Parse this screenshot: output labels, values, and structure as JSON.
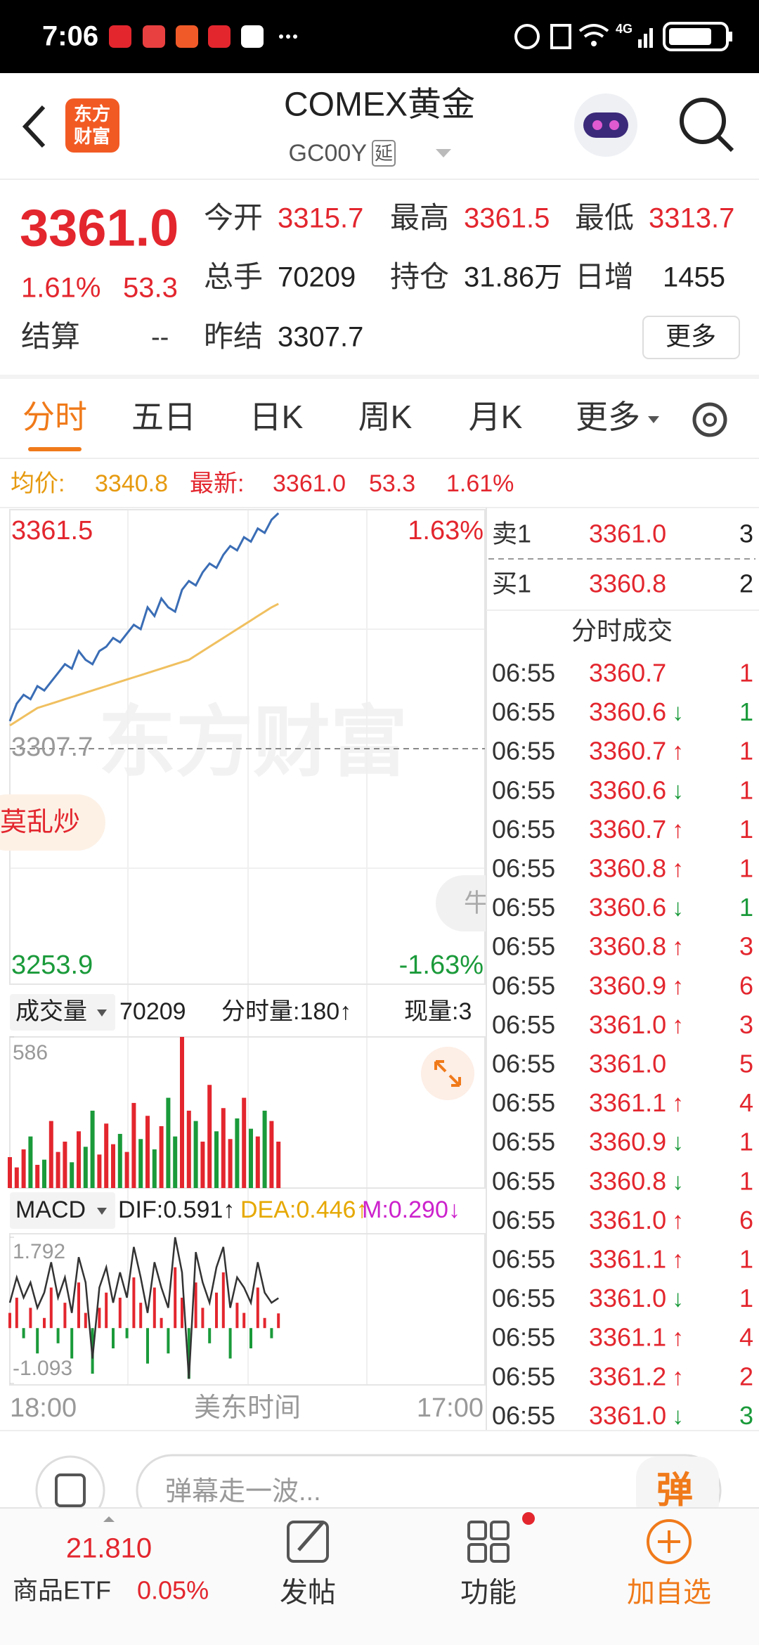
{
  "status_bar": {
    "time": "7:06",
    "network": "4G"
  },
  "header": {
    "logo": [
      "东方",
      "财富"
    ],
    "title": "COMEX黄金",
    "code": "GC00Y",
    "tag": "延"
  },
  "quote": {
    "price": "3361.0",
    "pct": "1.61%",
    "change": "53.3",
    "grid": [
      [
        {
          "label": "今开",
          "value": "3315.7"
        },
        {
          "label": "最高",
          "value": "3361.5"
        },
        {
          "label": "最低",
          "value": "3313.7"
        }
      ],
      [
        {
          "label": "总手",
          "value": "70209"
        },
        {
          "label": "持仓",
          "value": "31.86万"
        },
        {
          "label": "日增",
          "value": "1455"
        }
      ]
    ],
    "settle": {
      "label": "结算",
      "value": "--"
    },
    "prev_settle": {
      "label": "昨结",
      "value": "3307.7"
    },
    "more": "更多"
  },
  "tabs": {
    "items": [
      "分时",
      "五日",
      "日K",
      "周K",
      "月K",
      "更多"
    ],
    "active": 0
  },
  "info": {
    "avg_label": "均价:",
    "avg": "3340.8",
    "last_label": "最新:",
    "last": "3361.0",
    "change": "53.3",
    "pct": "1.61%"
  },
  "minute_chart": {
    "ylim": [
      3253.9,
      3361.5
    ],
    "yticks": [
      3361.5,
      3307.7,
      3253.9
    ],
    "y2lim": [
      -1.63,
      1.63
    ],
    "y2ticks": [
      {
        "value": 1.63,
        "label": "1.63%"
      },
      {
        "value": -1.63,
        "label": "-1.63%"
      }
    ],
    "price_color": "#3a6db5",
    "avg_color": "#f0c060",
    "price": [
      3314,
      3318,
      3320,
      3319,
      3322,
      3321,
      3323,
      3325,
      3327,
      3326,
      3330,
      3328,
      3327,
      3330,
      3331,
      3333,
      3332,
      3334,
      3336,
      3335,
      3340,
      3338,
      3342,
      3340,
      3339,
      3344,
      3346,
      3345,
      3348,
      3350,
      3349,
      3352,
      3354,
      3353,
      3356,
      3355,
      3358,
      3357,
      3360,
      3361.5
    ],
    "avg": [
      3313,
      3314,
      3315,
      3316,
      3317,
      3317.5,
      3318,
      3318.5,
      3319,
      3319.5,
      3320,
      3320.5,
      3321,
      3321.5,
      3322,
      3322.5,
      3323,
      3323.5,
      3324,
      3324.5,
      3325,
      3325.5,
      3326,
      3326.5,
      3327,
      3327.5,
      3328,
      3329,
      3330,
      3331,
      3332,
      3333,
      3334,
      3335,
      3336,
      3337,
      3338,
      3339,
      3340,
      3340.8
    ]
  },
  "volume": {
    "label": "成交量",
    "total": "70209",
    "minute_vol": "分时量:180↑",
    "current": "现量:3",
    "ylim": [
      0,
      586
    ],
    "yticks": [
      586
    ],
    "values": [
      120,
      80,
      150,
      200,
      90,
      110,
      260,
      140,
      180,
      100,
      220,
      160,
      300,
      130,
      250,
      170,
      210,
      140,
      330,
      190,
      280,
      150,
      240,
      350,
      200,
      586,
      300,
      260,
      180,
      400,
      220,
      310,
      190,
      270,
      350,
      230,
      200,
      300,
      260,
      180
    ]
  },
  "macd": {
    "label": "MACD",
    "dif": "DIF:0.591↑",
    "dea": "DEA:0.446↑",
    "m": "M:0.290↓",
    "ylim": [
      -1.093,
      1.792
    ],
    "yticks": [
      1.792,
      -1.093
    ],
    "hist": [
      0.3,
      0.6,
      -0.2,
      0.4,
      -0.5,
      0.2,
      0.8,
      -0.3,
      0.5,
      -0.6,
      0.9,
      0.3,
      -0.9,
      0.4,
      0.7,
      -0.4,
      0.6,
      -0.2,
      1.0,
      0.5,
      -0.7,
      0.8,
      0.2,
      -0.5,
      1.2,
      0.6,
      -1.0,
      0.9,
      0.4,
      -0.3,
      0.7,
      1.1,
      -0.6,
      0.5,
      0.3,
      -0.4,
      0.8,
      0.2,
      -0.2,
      0.29
    ],
    "dif_values": [
      0.5,
      1.0,
      0.6,
      0.9,
      0.4,
      0.7,
      1.3,
      0.6,
      1.0,
      0.3,
      1.4,
      0.9,
      -0.6,
      0.8,
      1.2,
      0.5,
      1.1,
      0.6,
      1.6,
      1.0,
      0.3,
      1.3,
      0.8,
      0.4,
      1.792,
      1.1,
      -1.0,
      1.5,
      0.9,
      0.5,
      1.2,
      1.6,
      0.4,
      1.0,
      0.8,
      0.5,
      1.3,
      0.7,
      0.5,
      0.591
    ]
  },
  "time_axis": [
    "18:00",
    "美东时间",
    "17:00"
  ],
  "order_book": {
    "asks": [
      {
        "label": "卖1",
        "price": "3361.0",
        "vol": "3"
      }
    ],
    "bids": [
      {
        "label": "买1",
        "price": "3360.8",
        "vol": "2"
      }
    ]
  },
  "trades": {
    "title": "分时成交",
    "rows": [
      {
        "time": "06:55",
        "price": "3360.7",
        "dir": null,
        "vol": "1",
        "color": "#e3262e"
      },
      {
        "time": "06:55",
        "price": "3360.6",
        "dir": "↓",
        "vol": "1",
        "color": "#1a9a3a"
      },
      {
        "time": "06:55",
        "price": "3360.7",
        "dir": "↑",
        "vol": "1",
        "color": "#e3262e"
      },
      {
        "time": "06:55",
        "price": "3360.6",
        "dir": "↓",
        "vol": "1",
        "color": "#e3262e"
      },
      {
        "time": "06:55",
        "price": "3360.7",
        "dir": "↑",
        "vol": "1",
        "color": "#e3262e"
      },
      {
        "time": "06:55",
        "price": "3360.8",
        "dir": "↑",
        "vol": "1",
        "color": "#e3262e"
      },
      {
        "time": "06:55",
        "price": "3360.6",
        "dir": "↓",
        "vol": "1",
        "color": "#1a9a3a"
      },
      {
        "time": "06:55",
        "price": "3360.8",
        "dir": "↑",
        "vol": "3",
        "color": "#e3262e"
      },
      {
        "time": "06:55",
        "price": "3360.9",
        "dir": "↑",
        "vol": "6",
        "color": "#e3262e"
      },
      {
        "time": "06:55",
        "price": "3361.0",
        "dir": "↑",
        "vol": "3",
        "color": "#e3262e"
      },
      {
        "time": "06:55",
        "price": "3361.0",
        "dir": null,
        "vol": "5",
        "color": "#e3262e"
      },
      {
        "time": "06:55",
        "price": "3361.1",
        "dir": "↑",
        "vol": "4",
        "color": "#e3262e"
      },
      {
        "time": "06:55",
        "price": "3360.9",
        "dir": "↓",
        "vol": "1",
        "color": "#e3262e"
      },
      {
        "time": "06:55",
        "price": "3360.8",
        "dir": "↓",
        "vol": "1",
        "color": "#e3262e"
      },
      {
        "time": "06:55",
        "price": "3361.0",
        "dir": "↑",
        "vol": "6",
        "color": "#e3262e"
      },
      {
        "time": "06:55",
        "price": "3361.1",
        "dir": "↑",
        "vol": "1",
        "color": "#e3262e"
      },
      {
        "time": "06:55",
        "price": "3361.0",
        "dir": "↓",
        "vol": "1",
        "color": "#e3262e"
      },
      {
        "time": "06:55",
        "price": "3361.1",
        "dir": "↑",
        "vol": "4",
        "color": "#e3262e"
      },
      {
        "time": "06:55",
        "price": "3361.2",
        "dir": "↑",
        "vol": "2",
        "color": "#e3262e"
      },
      {
        "time": "06:55",
        "price": "3361.0",
        "dir": "↓",
        "vol": "3",
        "color": "#1a9a3a"
      }
    ]
  },
  "overlays": {
    "watermark": "东方财富",
    "left_pill": "莫乱炒",
    "right_pill": "牛"
  },
  "danmaku": {
    "placeholder": "弹幕走一波...",
    "button": "弹"
  },
  "bottom_nav": {
    "etf_price": "21.810",
    "etf_name": "商品ETF",
    "etf_pct": "0.05%",
    "items": [
      "发帖",
      "功能",
      "加自选"
    ]
  }
}
